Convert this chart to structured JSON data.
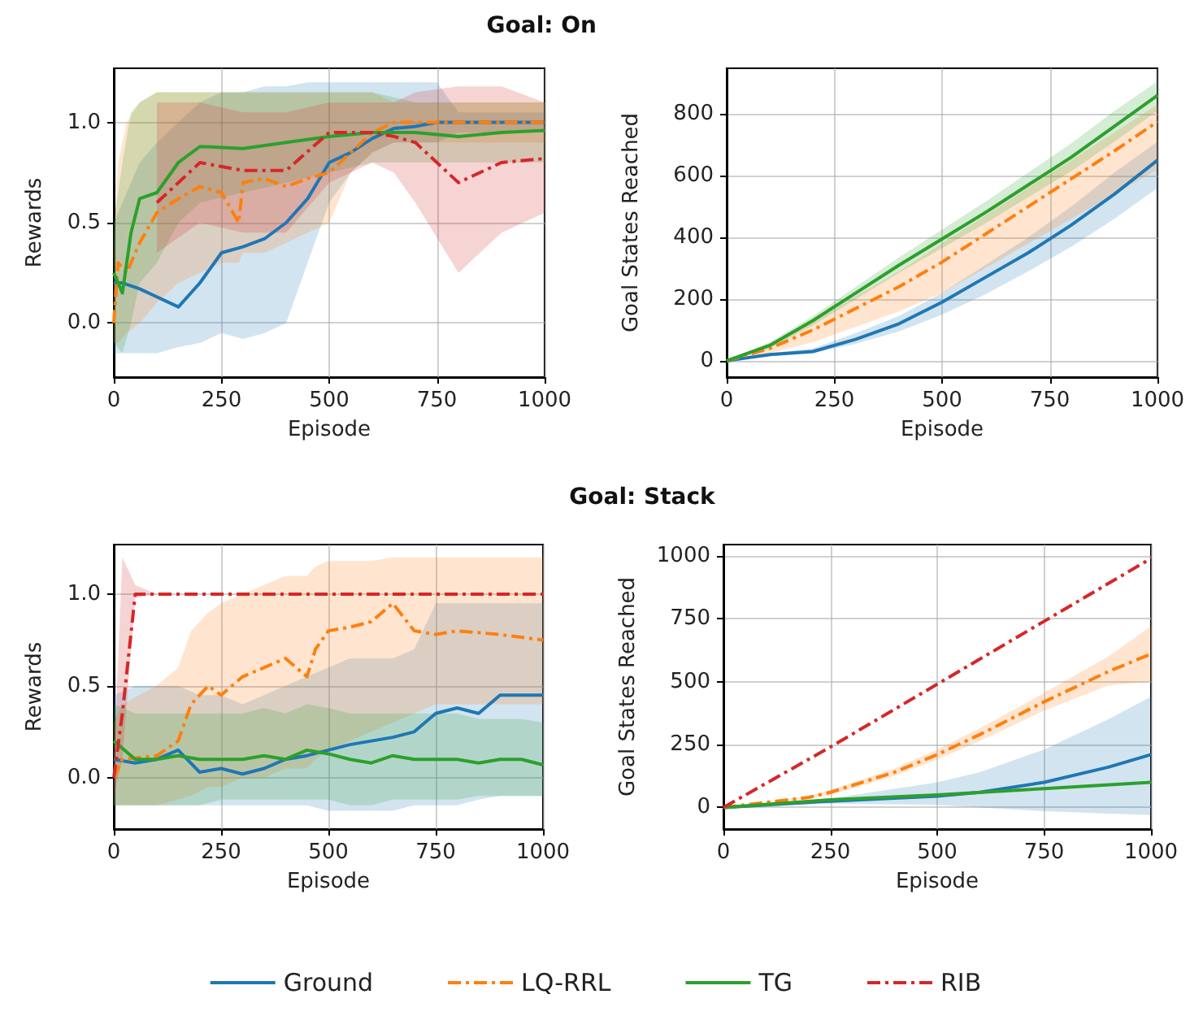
{
  "chart_data": [
    {
      "type": "line",
      "title": "Goal: On",
      "xlabel": "Episode",
      "ylabel": "Rewards",
      "xlim": [
        0,
        1000
      ],
      "xticks": [
        0,
        250,
        500,
        750,
        1000
      ],
      "ylim": [
        -0.27,
        1.27
      ],
      "yticks": [
        {
          "value": 0,
          "label": "0.0"
        },
        {
          "value": 0.5,
          "label": "0.5"
        },
        {
          "value": 1,
          "label": "1.0"
        }
      ],
      "grid": true,
      "series": [
        {
          "color": "#1f77b4",
          "line_style": "solid",
          "x": [
            0,
            20,
            60,
            100,
            150,
            200,
            250,
            300,
            350,
            400,
            450,
            500,
            550,
            600,
            650,
            700,
            750,
            800,
            900,
            1000
          ],
          "values": [
            0.2,
            0.2,
            0.17,
            0.13,
            0.08,
            0.2,
            0.35,
            0.38,
            0.42,
            0.5,
            0.62,
            0.8,
            0.85,
            0.92,
            0.97,
            0.98,
            1.0,
            1.0,
            1.0,
            1.0
          ],
          "lower": [
            -0.15,
            -0.15,
            -0.15,
            -0.15,
            -0.12,
            -0.1,
            -0.05,
            -0.08,
            -0.05,
            0.0,
            0.3,
            0.6,
            0.75,
            0.85,
            0.9,
            0.9,
            0.9,
            0.95,
            0.95,
            0.95
          ],
          "upper": [
            0.5,
            0.6,
            0.8,
            0.9,
            1.0,
            1.1,
            1.15,
            1.15,
            1.18,
            1.18,
            1.2,
            1.2,
            1.2,
            1.2,
            1.2,
            1.2,
            1.2,
            1.05,
            1.05,
            1.05
          ]
        },
        {
          "color": "#ff7f0e",
          "line_style": "dashed",
          "x": [
            0,
            10,
            30,
            60,
            100,
            150,
            200,
            250,
            290,
            300,
            350,
            400,
            450,
            500,
            550,
            600,
            650,
            700,
            800,
            900,
            1000
          ],
          "values": [
            0.0,
            0.3,
            0.25,
            0.4,
            0.55,
            0.62,
            0.68,
            0.65,
            0.5,
            0.7,
            0.72,
            0.68,
            0.72,
            0.75,
            0.85,
            0.95,
            1.0,
            1.0,
            1.0,
            1.0,
            1.0
          ],
          "lower": [
            -0.1,
            -0.1,
            -0.05,
            0.0,
            0.1,
            0.2,
            0.25,
            0.3,
            0.3,
            0.35,
            0.35,
            0.4,
            0.45,
            0.5,
            0.75,
            0.85,
            0.9,
            0.9,
            0.9,
            0.9,
            0.9
          ],
          "upper": [
            0.4,
            0.8,
            1.0,
            1.1,
            1.15,
            1.15,
            1.15,
            1.15,
            1.15,
            1.15,
            1.15,
            1.15,
            1.15,
            1.15,
            1.15,
            1.15,
            1.1,
            1.1,
            1.1,
            1.1,
            1.1
          ]
        },
        {
          "color": "#2ca02c",
          "line_style": "solid",
          "x": [
            0,
            20,
            40,
            60,
            100,
            150,
            200,
            300,
            400,
            500,
            600,
            700,
            800,
            900,
            1000
          ],
          "values": [
            0.25,
            0.15,
            0.45,
            0.62,
            0.65,
            0.8,
            0.88,
            0.87,
            0.9,
            0.93,
            0.95,
            0.95,
            0.93,
            0.95,
            0.96
          ],
          "lower": [
            -0.1,
            -0.15,
            0.0,
            0.2,
            0.3,
            0.5,
            0.6,
            0.65,
            0.7,
            0.75,
            0.8,
            0.8,
            0.8,
            0.8,
            0.8
          ],
          "upper": [
            0.5,
            0.8,
            1.05,
            1.1,
            1.15,
            1.15,
            1.15,
            1.15,
            1.15,
            1.15,
            1.15,
            1.1,
            1.1,
            1.1,
            1.1
          ]
        },
        {
          "color": "#d62728",
          "line_style": "dashed",
          "x": [
            100,
            200,
            300,
            400,
            500,
            600,
            650,
            700,
            800,
            900,
            1000
          ],
          "values": [
            0.6,
            0.8,
            0.76,
            0.76,
            0.95,
            0.95,
            0.93,
            0.9,
            0.7,
            0.8,
            0.82
          ],
          "lower": [
            0.35,
            0.5,
            0.45,
            0.45,
            0.7,
            0.8,
            0.75,
            0.6,
            0.25,
            0.45,
            0.55
          ],
          "upper": [
            1.1,
            1.1,
            1.05,
            1.05,
            1.1,
            1.1,
            1.1,
            1.15,
            1.18,
            1.18,
            1.1
          ]
        }
      ]
    },
    {
      "type": "line",
      "xlabel": "Episode",
      "ylabel": "Goal States Reached",
      "xlim": [
        0,
        1000
      ],
      "xticks": [
        0,
        250,
        500,
        750,
        1000
      ],
      "ylim": [
        -53,
        948
      ],
      "yticks": [
        0,
        200,
        400,
        600,
        800
      ],
      "grid": true,
      "series": [
        {
          "color": "#1f77b4",
          "line_style": "solid",
          "x": [
            0,
            100,
            200,
            300,
            400,
            500,
            600,
            700,
            800,
            900,
            1000
          ],
          "values": [
            0,
            20,
            30,
            70,
            120,
            190,
            270,
            350,
            440,
            540,
            650
          ],
          "lower": [
            0,
            15,
            25,
            55,
            95,
            150,
            215,
            290,
            370,
            460,
            560
          ],
          "upper": [
            0,
            25,
            40,
            90,
            145,
            220,
            310,
            400,
            500,
            610,
            710
          ]
        },
        {
          "color": "#ff7f0e",
          "line_style": "dashed",
          "x": [
            0,
            100,
            200,
            300,
            400,
            500,
            600,
            700,
            800,
            900,
            1000
          ],
          "values": [
            0,
            40,
            100,
            170,
            240,
            320,
            410,
            500,
            590,
            680,
            775
          ],
          "lower": [
            0,
            25,
            60,
            110,
            160,
            220,
            300,
            380,
            460,
            540,
            620
          ],
          "upper": [
            0,
            50,
            125,
            210,
            290,
            380,
            470,
            560,
            650,
            740,
            830
          ]
        },
        {
          "color": "#2ca02c",
          "line_style": "solid",
          "x": [
            0,
            100,
            200,
            300,
            400,
            500,
            600,
            700,
            800,
            900,
            1000
          ],
          "values": [
            0,
            50,
            130,
            220,
            310,
            395,
            480,
            570,
            660,
            760,
            860
          ],
          "lower": [
            0,
            40,
            115,
            200,
            285,
            365,
            445,
            530,
            615,
            710,
            810
          ],
          "upper": [
            0,
            60,
            145,
            240,
            335,
            425,
            515,
            610,
            705,
            810,
            905
          ]
        }
      ]
    },
    {
      "type": "line",
      "title": "Goal: Stack",
      "xlabel": "Episode",
      "ylabel": "Rewards",
      "xlim": [
        0,
        1000
      ],
      "xticks": [
        0,
        250,
        500,
        750,
        1000
      ],
      "ylim": [
        -0.28,
        1.27
      ],
      "yticks": [
        {
          "value": 0,
          "label": "0.0"
        },
        {
          "value": 0.5,
          "label": "0.5"
        },
        {
          "value": 1,
          "label": "1.0"
        }
      ],
      "grid": true,
      "legend": "bottom",
      "series": [
        {
          "name": "Ground",
          "color": "#1f77b4",
          "line_style": "solid",
          "x": [
            0,
            50,
            100,
            150,
            200,
            250,
            300,
            350,
            400,
            450,
            500,
            550,
            600,
            650,
            700,
            750,
            800,
            850,
            900,
            950,
            1000
          ],
          "values": [
            0.1,
            0.08,
            0.1,
            0.15,
            0.03,
            0.05,
            0.02,
            0.05,
            0.1,
            0.12,
            0.15,
            0.18,
            0.2,
            0.22,
            0.25,
            0.35,
            0.38,
            0.35,
            0.45,
            0.45,
            0.45
          ],
          "lower": [
            -0.15,
            -0.15,
            -0.15,
            -0.15,
            -0.15,
            -0.15,
            -0.15,
            -0.15,
            -0.15,
            -0.15,
            -0.18,
            -0.18,
            -0.18,
            -0.18,
            -0.15,
            -0.15,
            -0.15,
            -0.12,
            -0.1,
            -0.1,
            -0.1
          ],
          "upper": [
            0.45,
            0.5,
            0.5,
            0.5,
            0.45,
            0.45,
            0.4,
            0.45,
            0.5,
            0.55,
            0.6,
            0.65,
            0.65,
            0.65,
            0.7,
            0.95,
            0.95,
            0.95,
            0.95,
            0.95,
            0.95
          ]
        },
        {
          "name": "LQ-RRL",
          "color": "#ff7f0e",
          "line_style": "dashed",
          "x": [
            0,
            20,
            100,
            150,
            180,
            220,
            250,
            300,
            350,
            400,
            450,
            470,
            500,
            550,
            600,
            650,
            700,
            750,
            800,
            900,
            1000
          ],
          "values": [
            0.0,
            0.1,
            0.12,
            0.2,
            0.4,
            0.5,
            0.45,
            0.55,
            0.6,
            0.65,
            0.55,
            0.7,
            0.8,
            0.82,
            0.85,
            0.95,
            0.8,
            0.78,
            0.8,
            0.78,
            0.75
          ],
          "lower": [
            -0.15,
            -0.15,
            -0.15,
            -0.12,
            -0.1,
            -0.05,
            -0.05,
            0.0,
            0.0,
            0.05,
            0.05,
            0.1,
            0.15,
            0.2,
            0.25,
            0.3,
            0.35,
            0.4,
            0.4,
            0.4,
            0.4
          ],
          "upper": [
            0.3,
            0.4,
            0.5,
            0.6,
            0.8,
            0.9,
            0.95,
            1.0,
            1.05,
            1.1,
            1.1,
            1.15,
            1.18,
            1.18,
            1.18,
            1.2,
            1.2,
            1.2,
            1.2,
            1.2,
            1.2
          ]
        },
        {
          "name": "TG",
          "color": "#2ca02c",
          "line_style": "solid",
          "x": [
            0,
            50,
            100,
            150,
            200,
            250,
            300,
            350,
            400,
            450,
            500,
            550,
            600,
            650,
            700,
            750,
            800,
            850,
            900,
            950,
            1000
          ],
          "values": [
            0.2,
            0.1,
            0.1,
            0.12,
            0.1,
            0.1,
            0.1,
            0.12,
            0.1,
            0.15,
            0.13,
            0.1,
            0.08,
            0.12,
            0.1,
            0.1,
            0.1,
            0.08,
            0.1,
            0.1,
            0.07
          ],
          "lower": [
            -0.15,
            -0.15,
            -0.15,
            -0.15,
            -0.15,
            -0.12,
            -0.12,
            -0.12,
            -0.12,
            -0.12,
            -0.12,
            -0.15,
            -0.15,
            -0.12,
            -0.12,
            -0.12,
            -0.12,
            -0.1,
            -0.1,
            -0.1,
            -0.1
          ],
          "upper": [
            0.4,
            0.35,
            0.35,
            0.35,
            0.35,
            0.35,
            0.35,
            0.38,
            0.35,
            0.4,
            0.38,
            0.35,
            0.35,
            0.35,
            0.35,
            0.35,
            0.35,
            0.32,
            0.32,
            0.32,
            0.3
          ]
        },
        {
          "name": "RIB",
          "color": "#d62728",
          "line_style": "dashed",
          "x": [
            0,
            20,
            50,
            100,
            500,
            1000
          ],
          "values": [
            0.0,
            0.35,
            1.0,
            1.0,
            1.0,
            1.0
          ],
          "lower": [
            -0.1,
            0.1,
            0.98,
            1.0,
            1.0,
            1.0
          ],
          "upper": [
            0.1,
            1.2,
            1.05,
            1.0,
            1.0,
            1.0
          ]
        }
      ]
    },
    {
      "type": "line",
      "xlabel": "Episode",
      "ylabel": "Goal States Reached",
      "xlim": [
        0,
        1000
      ],
      "xticks": [
        0,
        250,
        500,
        750,
        1000
      ],
      "ylim": [
        -86,
        1045
      ],
      "yticks": [
        0,
        250,
        500,
        750,
        1000
      ],
      "grid": true,
      "series": [
        {
          "color": "#1f77b4",
          "line_style": "solid",
          "x": [
            0,
            250,
            500,
            600,
            750,
            900,
            1000
          ],
          "values": [
            0,
            25,
            45,
            60,
            100,
            160,
            210
          ],
          "lower": [
            0,
            15,
            10,
            0,
            -15,
            -25,
            -30
          ],
          "upper": [
            0,
            35,
            100,
            140,
            230,
            350,
            440
          ]
        },
        {
          "color": "#ff7f0e",
          "line_style": "dashed",
          "x": [
            0,
            200,
            250,
            400,
            500,
            600,
            750,
            900,
            1000
          ],
          "values": [
            0,
            40,
            60,
            140,
            210,
            290,
            420,
            540,
            610
          ],
          "lower": [
            0,
            35,
            50,
            125,
            190,
            265,
            385,
            485,
            500
          ],
          "upper": [
            0,
            45,
            70,
            155,
            230,
            315,
            455,
            600,
            720
          ]
        },
        {
          "color": "#2ca02c",
          "line_style": "solid",
          "x": [
            0,
            250,
            500,
            750,
            1000
          ],
          "values": [
            0,
            30,
            50,
            75,
            100
          ]
        },
        {
          "color": "#d62728",
          "line_style": "dashed",
          "x": [
            0,
            250,
            500,
            750,
            1000
          ],
          "values": [
            0,
            240,
            490,
            740,
            990
          ]
        }
      ]
    }
  ]
}
